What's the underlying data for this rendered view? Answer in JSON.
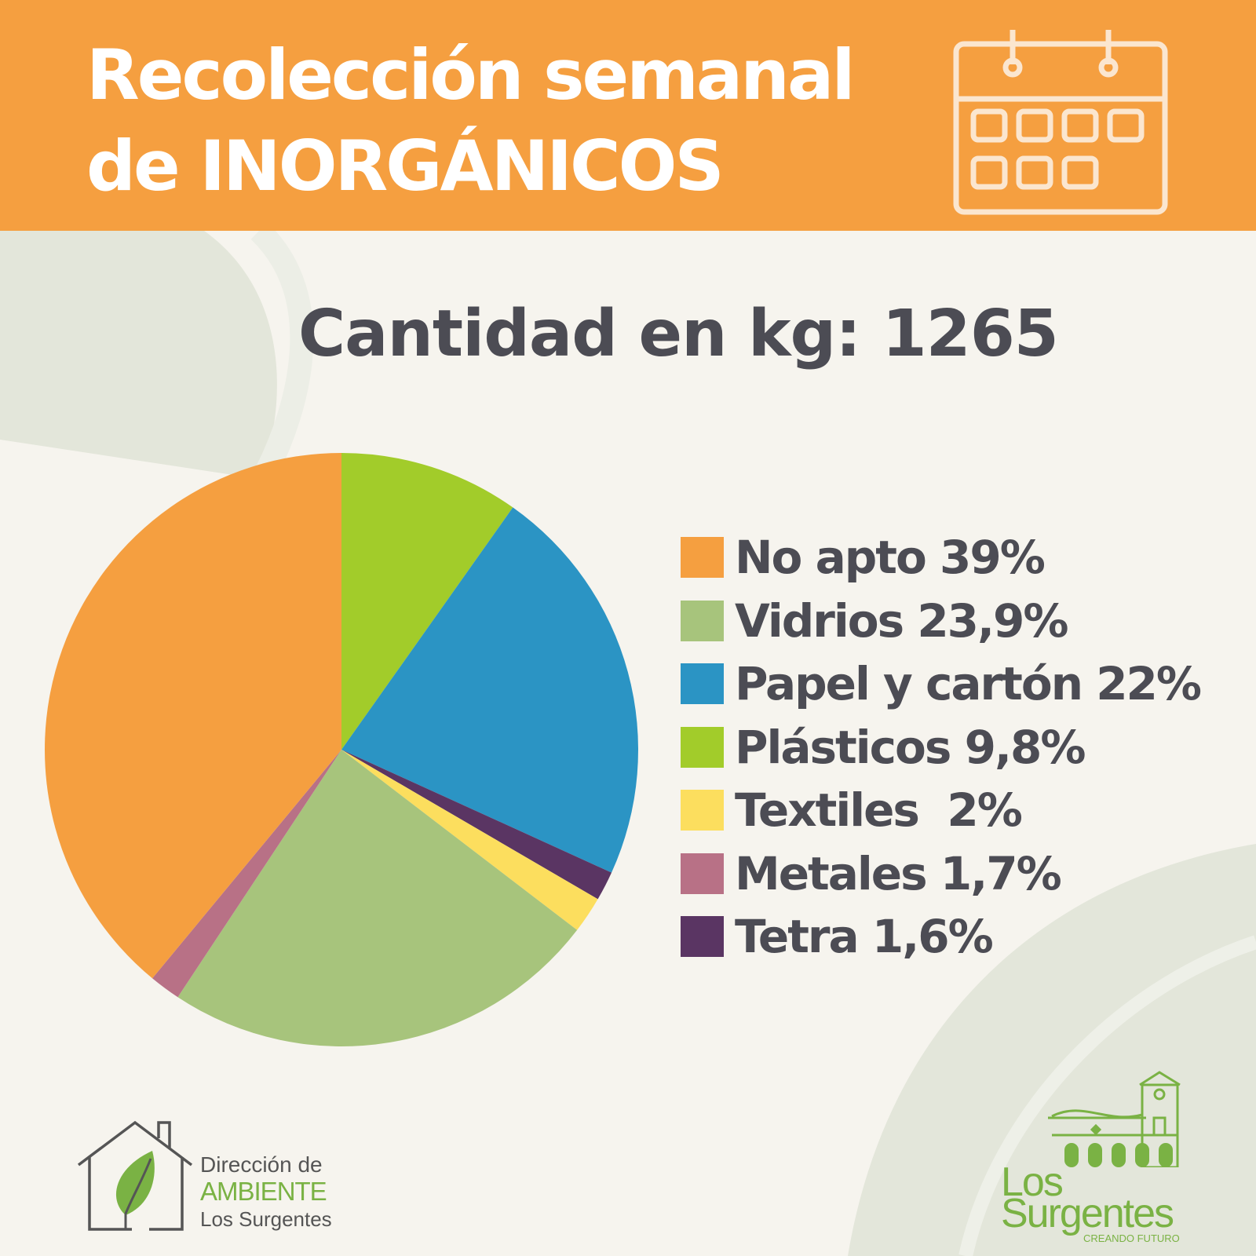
{
  "header": {
    "title_line1": "Recolección semanal",
    "title_line2": "de INORGÁNICOS",
    "icon": "calendar-icon"
  },
  "total_label": "Cantidad en kg: 1265",
  "colors": {
    "header": "#f59f40",
    "background": "#f6f4ee",
    "text": "#4c4c54"
  },
  "chart_data": {
    "type": "pie",
    "title": "Cantidad en kg: 1265",
    "start_angle_deg": 0,
    "slice_order_clockwise_from_top": [
      "Plásticos",
      "Papel y cartón",
      "Tetra",
      "Textiles",
      "Vidrios",
      "Metales",
      "No apto"
    ],
    "legend_position": "right",
    "series": [
      {
        "name": "No apto",
        "value": 39,
        "label": "No apto 39%",
        "color": "#f59f40"
      },
      {
        "name": "Vidrios",
        "value": 23.9,
        "label": "Vidrios 23,9%",
        "color": "#a7c47c"
      },
      {
        "name": "Papel y cartón",
        "value": 22,
        "label": "Papel y cartón 22%",
        "color": "#2b94c4"
      },
      {
        "name": "Plásticos",
        "value": 9.8,
        "label": "Plásticos 9,8%",
        "color": "#a2cc2a"
      },
      {
        "name": "Textiles",
        "value": 2,
        "label": "Textiles  2%",
        "color": "#fcde5e"
      },
      {
        "name": "Metales",
        "value": 1.7,
        "label": "Metales 1,7%",
        "color": "#b87186"
      },
      {
        "name": "Tetra",
        "value": 1.6,
        "label": "Tetra 1,6%",
        "color": "#5a3563"
      }
    ]
  },
  "logos": {
    "ambiente": {
      "line1": "Dirección de",
      "line2": "AMBIENTE",
      "line3": "Los Surgentes",
      "icon": "house-leaf-icon"
    },
    "surgentes": {
      "line1": "Los",
      "line2": "Surgentes",
      "tagline": "CREANDO FUTURO",
      "icon": "church-building-icon"
    }
  }
}
